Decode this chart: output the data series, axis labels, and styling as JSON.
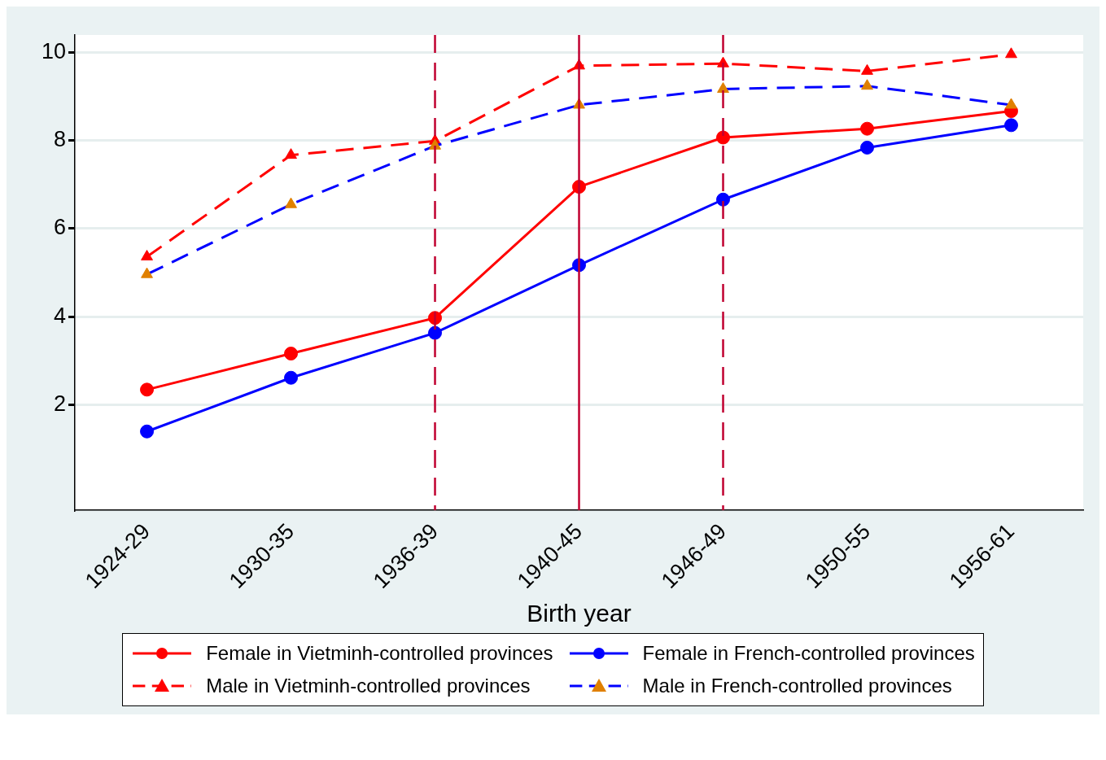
{
  "chart_data": {
    "type": "line",
    "xlabel": "Birth year",
    "categories": [
      "1924-29",
      "1930-35",
      "1936-39",
      "1940-45",
      "1946-49",
      "1950-55",
      "1956-61"
    ],
    "series": [
      {
        "name": "Female in Vietminh-controlled provinces",
        "color": "#ff0000",
        "marker": "circle",
        "line_style": "solid",
        "values": [
          2.34,
          3.16,
          3.97,
          6.95,
          8.07,
          8.27,
          8.67
        ]
      },
      {
        "name": "Female in French-controlled provinces",
        "color": "#0000ff",
        "marker": "circle",
        "line_style": "solid",
        "values": [
          1.39,
          2.61,
          3.63,
          5.17,
          6.66,
          7.84,
          8.35
        ]
      },
      {
        "name": "Male in Vietminh-controlled provinces",
        "color": "#ff0000",
        "marker": "triangle",
        "line_style": "dashed",
        "values": [
          5.36,
          7.67,
          7.99,
          9.7,
          9.75,
          9.58,
          9.96
        ]
      },
      {
        "name": "Male in French-controlled provinces",
        "color": "#0000ff",
        "colors": [
          "#e08000",
          "#e08000",
          "#e08000",
          "#e08000",
          "#e08000",
          "#e08000",
          "#e08000"
        ],
        "marker": "triangle",
        "line_style": "dashed",
        "values": [
          4.96,
          6.55,
          7.88,
          8.81,
          9.17,
          9.24,
          8.81
        ]
      }
    ],
    "ref_lines": [
      {
        "axis": "x",
        "value": "1936-39",
        "color": "#c00030",
        "line_style": "dashed"
      },
      {
        "axis": "x",
        "value": "1940-45",
        "color": "#c00030",
        "line_style": "solid"
      },
      {
        "axis": "x",
        "value": "1946-49",
        "color": "#c00030",
        "line_style": "dashed"
      }
    ],
    "ylim": [
      -0.4,
      10.4
    ],
    "yticks": [
      2,
      4,
      6,
      8,
      10
    ],
    "grid": "y",
    "legend": "bottom"
  }
}
